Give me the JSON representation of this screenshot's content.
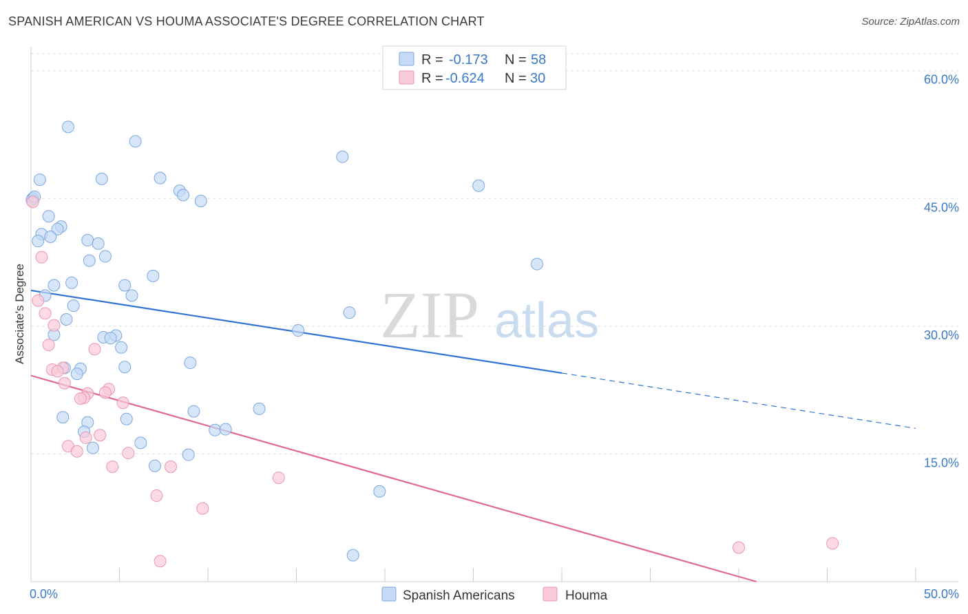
{
  "header": {
    "title": "SPANISH AMERICAN VS HOUMA ASSOCIATE'S DEGREE CORRELATION CHART",
    "source": "Source: ZipAtlas.com"
  },
  "legend": {
    "rows": [
      {
        "r_label": "R =",
        "r_value": "-0.173",
        "n_label": "N =",
        "n_value": "58"
      },
      {
        "r_label": "R =",
        "r_value": "-0.624",
        "n_label": "N =",
        "n_value": "30"
      }
    ]
  },
  "watermark": {
    "zip": "ZIP",
    "atlas": "atlas"
  },
  "colors": {
    "blue_fill": "#c5daf5",
    "blue_stroke": "#7aa7e0",
    "blue_line": "#2f72d4",
    "pink_fill": "#f9cad8",
    "pink_stroke": "#ea95b0",
    "pink_line": "#e06890",
    "tick_text": "#3a78c9",
    "grid": "#dddddd"
  },
  "chart_data": {
    "type": "scatter",
    "xlabel": "",
    "ylabel": "Associate's Degree",
    "xlim": [
      0,
      50
    ],
    "ylim": [
      0,
      62
    ],
    "x_tick_labels": [
      "0.0%",
      "50.0%"
    ],
    "y_ticks": [
      {
        "value": 15,
        "label": "15.0%"
      },
      {
        "value": 30,
        "label": "30.0%"
      },
      {
        "value": 45,
        "label": "45.0%"
      },
      {
        "value": 60,
        "label": "60.0%"
      }
    ],
    "grid": true,
    "legend_position": "top-center",
    "series": [
      {
        "name": "Spanish Americans",
        "color": "blue",
        "trend": {
          "x0": 0,
          "y0": 34.2,
          "x1": 30,
          "y1": 24.5,
          "dashed_to_x": 50,
          "dashed_to_y": 18.0
        },
        "points": [
          [
            2.1,
            53.4
          ],
          [
            5.9,
            51.7
          ],
          [
            0.5,
            47.2
          ],
          [
            4.0,
            47.3
          ],
          [
            7.3,
            47.4
          ],
          [
            8.4,
            45.9
          ],
          [
            8.6,
            45.4
          ],
          [
            9.6,
            44.7
          ],
          [
            0.1,
            45.0
          ],
          [
            1.0,
            42.9
          ],
          [
            1.7,
            41.7
          ],
          [
            1.5,
            41.4
          ],
          [
            0.6,
            40.8
          ],
          [
            1.1,
            40.5
          ],
          [
            0.4,
            40.0
          ],
          [
            3.2,
            40.1
          ],
          [
            3.8,
            39.7
          ],
          [
            4.2,
            38.2
          ],
          [
            3.3,
            37.7
          ],
          [
            17.6,
            49.9
          ],
          [
            25.3,
            46.5
          ],
          [
            28.6,
            37.3
          ],
          [
            6.9,
            35.9
          ],
          [
            2.3,
            35.1
          ],
          [
            1.3,
            34.8
          ],
          [
            5.3,
            34.8
          ],
          [
            0.8,
            33.6
          ],
          [
            5.7,
            33.6
          ],
          [
            2.4,
            32.4
          ],
          [
            2.0,
            30.8
          ],
          [
            18.0,
            31.6
          ],
          [
            15.1,
            29.5
          ],
          [
            4.1,
            28.7
          ],
          [
            4.8,
            28.9
          ],
          [
            1.3,
            29.0
          ],
          [
            5.1,
            27.5
          ],
          [
            2.8,
            25.0
          ],
          [
            2.6,
            24.4
          ],
          [
            5.3,
            25.2
          ],
          [
            9.0,
            25.7
          ],
          [
            12.9,
            20.3
          ],
          [
            9.2,
            20.0
          ],
          [
            1.8,
            19.3
          ],
          [
            5.4,
            19.1
          ],
          [
            3.2,
            18.7
          ],
          [
            10.4,
            17.8
          ],
          [
            11.0,
            17.9
          ],
          [
            3.0,
            17.6
          ],
          [
            6.2,
            16.3
          ],
          [
            3.5,
            15.7
          ],
          [
            8.9,
            14.9
          ],
          [
            7.0,
            13.6
          ],
          [
            19.7,
            10.6
          ],
          [
            18.2,
            3.1
          ],
          [
            0.05,
            44.8
          ],
          [
            0.2,
            45.2
          ],
          [
            1.9,
            25.1
          ],
          [
            4.5,
            28.6
          ]
        ]
      },
      {
        "name": "Houma",
        "color": "pink",
        "trend": {
          "x0": 0,
          "y0": 24.2,
          "x1": 41,
          "y1": 0
        },
        "points": [
          [
            0.6,
            38.1
          ],
          [
            0.4,
            33.0
          ],
          [
            0.8,
            31.5
          ],
          [
            1.3,
            30.1
          ],
          [
            1.0,
            27.8
          ],
          [
            3.6,
            27.3
          ],
          [
            1.8,
            25.1
          ],
          [
            1.2,
            24.9
          ],
          [
            1.5,
            24.7
          ],
          [
            1.9,
            23.3
          ],
          [
            4.4,
            22.6
          ],
          [
            3.2,
            22.1
          ],
          [
            4.2,
            22.2
          ],
          [
            3.0,
            21.6
          ],
          [
            2.8,
            21.5
          ],
          [
            5.2,
            21.0
          ],
          [
            3.9,
            17.2
          ],
          [
            3.1,
            16.9
          ],
          [
            2.1,
            15.9
          ],
          [
            2.6,
            15.3
          ],
          [
            5.5,
            15.1
          ],
          [
            4.6,
            13.5
          ],
          [
            7.9,
            13.5
          ],
          [
            14.0,
            12.2
          ],
          [
            7.1,
            10.1
          ],
          [
            9.7,
            8.6
          ],
          [
            7.3,
            2.4
          ],
          [
            40.0,
            4.0
          ],
          [
            45.3,
            4.5
          ],
          [
            0.1,
            44.6
          ]
        ]
      }
    ]
  }
}
